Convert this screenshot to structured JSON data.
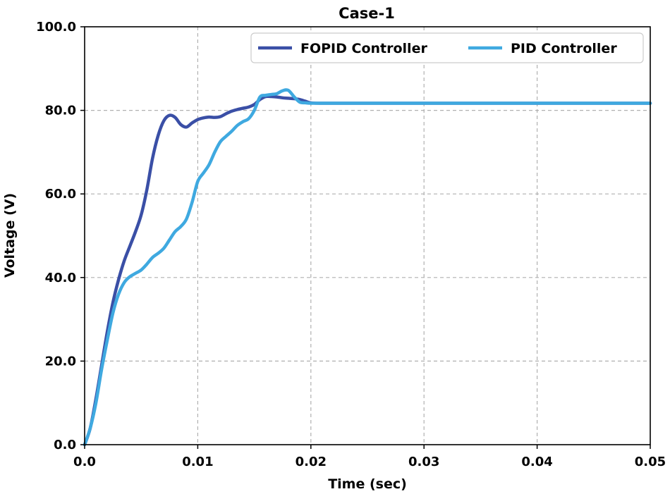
{
  "chart_data": {
    "type": "line",
    "title": "Case-1",
    "xlabel": "Time (sec)",
    "ylabel": "Voltage (V)",
    "xlim": [
      0,
      0.05
    ],
    "ylim": [
      0,
      100
    ],
    "xticks": [
      0.0,
      0.01,
      0.02,
      0.03,
      0.04,
      0.05
    ],
    "xtick_labels": [
      "0.0",
      "0.01",
      "0.02",
      "0.03",
      "0.04",
      "0.05"
    ],
    "yticks": [
      0,
      20,
      40,
      60,
      80,
      100
    ],
    "ytick_labels": [
      "0.0",
      "20.0",
      "40.0",
      "60.0",
      "80.0",
      "100.0"
    ],
    "grid": true,
    "legend_position": "top-right",
    "series": [
      {
        "name": "FOPID Controller",
        "color": "#3A4FA6",
        "x": [
          0,
          0.0005,
          0.001,
          0.0015,
          0.002,
          0.0025,
          0.003,
          0.0035,
          0.004,
          0.0045,
          0.005,
          0.0055,
          0.006,
          0.0065,
          0.007,
          0.0075,
          0.008,
          0.0085,
          0.009,
          0.0095,
          0.01,
          0.0105,
          0.011,
          0.0115,
          0.012,
          0.0125,
          0.013,
          0.0135,
          0.014,
          0.0145,
          0.015,
          0.0155,
          0.016,
          0.0165,
          0.017,
          0.0175,
          0.018,
          0.0185,
          0.019,
          0.0195,
          0.02,
          0.021,
          0.025,
          0.03,
          0.035,
          0.04,
          0.045,
          0.05
        ],
        "y": [
          0,
          4,
          11,
          19,
          27,
          34,
          39.5,
          44,
          47.5,
          51,
          55,
          61,
          68.5,
          74,
          77.5,
          78.8,
          78.3,
          76.6,
          76,
          77,
          77.8,
          78.2,
          78.4,
          78.3,
          78.5,
          79.2,
          79.8,
          80.2,
          80.5,
          80.8,
          81.4,
          82.6,
          83.3,
          83.3,
          83.2,
          83,
          82.9,
          82.8,
          82.6,
          82.2,
          81.8,
          81.7,
          81.7,
          81.7,
          81.7,
          81.7,
          81.7,
          81.7
        ]
      },
      {
        "name": "PID Controller",
        "color": "#3FA9E0",
        "x": [
          0,
          0.0005,
          0.001,
          0.0015,
          0.002,
          0.0025,
          0.003,
          0.0035,
          0.004,
          0.0045,
          0.005,
          0.0055,
          0.006,
          0.0065,
          0.007,
          0.0075,
          0.008,
          0.0085,
          0.009,
          0.0095,
          0.01,
          0.0105,
          0.011,
          0.0115,
          0.012,
          0.0125,
          0.013,
          0.0135,
          0.014,
          0.0145,
          0.015,
          0.0155,
          0.016,
          0.0165,
          0.017,
          0.0175,
          0.018,
          0.0185,
          0.019,
          0.0195,
          0.02,
          0.021,
          0.025,
          0.03,
          0.035,
          0.04,
          0.045,
          0.05
        ],
        "y": [
          0,
          4,
          10,
          18,
          25,
          31.5,
          36,
          38.8,
          40.2,
          41,
          41.8,
          43.2,
          44.8,
          45.8,
          47,
          49,
          51,
          52.2,
          54,
          58,
          63,
          65,
          67,
          70,
          72.5,
          73.8,
          75,
          76.4,
          77.3,
          78,
          80,
          83.2,
          83.6,
          83.8,
          84,
          84.7,
          84.8,
          83.3,
          82,
          81.8,
          81.7,
          81.7,
          81.7,
          81.7,
          81.7,
          81.7,
          81.7,
          81.7
        ]
      }
    ]
  }
}
